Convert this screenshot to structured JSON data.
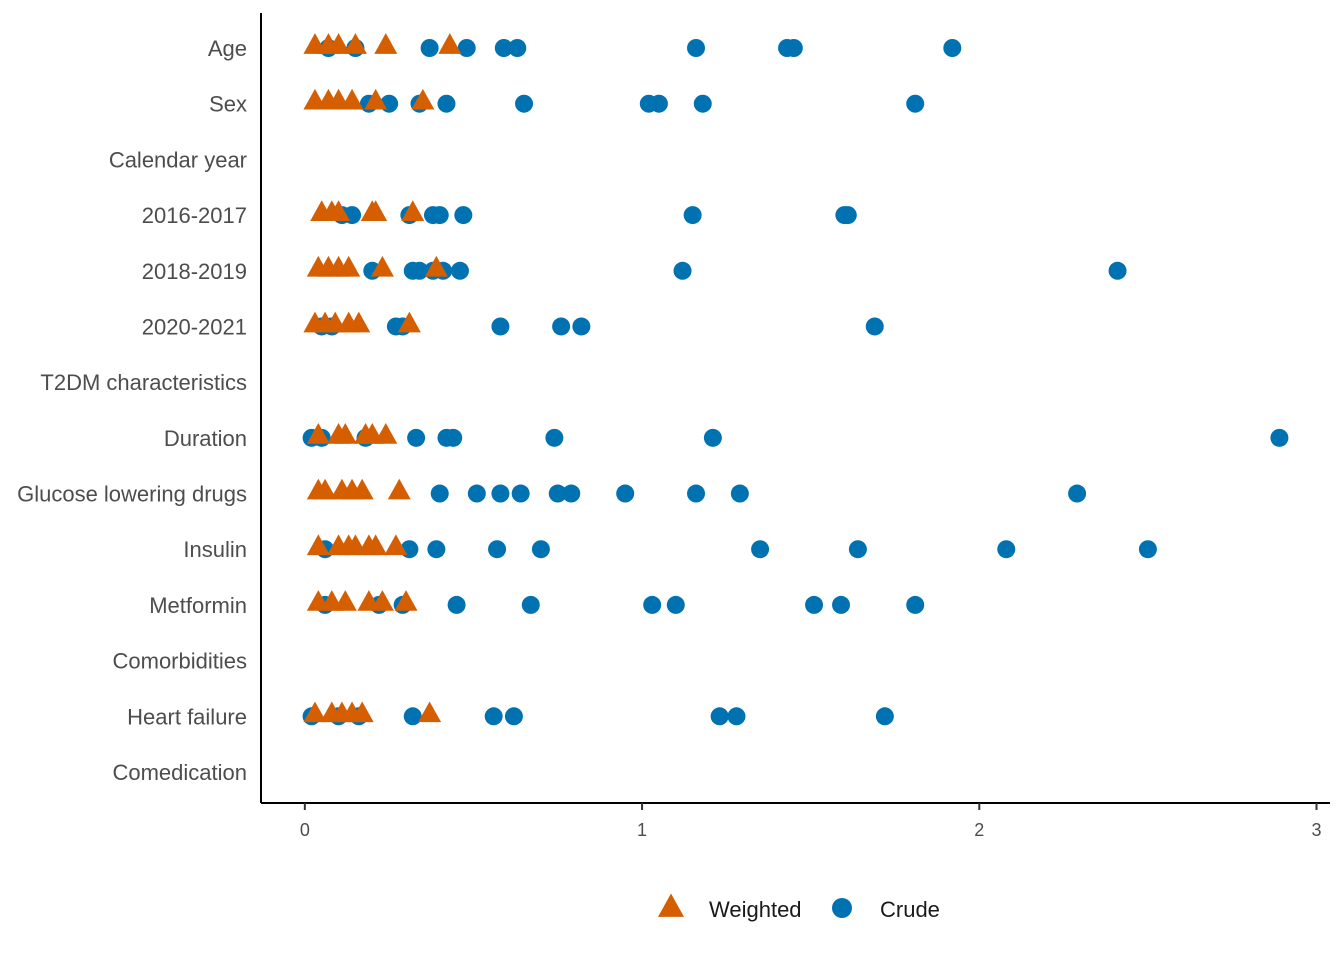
{
  "chart_data": {
    "type": "scatter",
    "orientation": "horizontal",
    "categories": [
      "Age",
      "Sex",
      "Calendar year",
      "2016-2017",
      "2018-2019",
      "2020-2021",
      "T2DM characteristics",
      "Duration",
      "Glucose lowering drugs",
      "Insulin",
      "Metformin",
      "Comorbidities",
      "Heart failure",
      "Comedication"
    ],
    "x_ticks": [
      "0",
      "1",
      "2",
      "3"
    ],
    "xlim": [
      -0.13,
      3.04
    ],
    "xlabel": "",
    "ylabel": "",
    "grid": false,
    "legend_position": "bottom",
    "series": [
      {
        "name": "Crude",
        "marker": "circle",
        "color": "#0072B2",
        "points": [
          {
            "category": "Age",
            "values": [
              0.07,
              0.15,
              0.37,
              0.48,
              0.59,
              0.63,
              1.16,
              1.43,
              1.45,
              1.92
            ]
          },
          {
            "category": "Sex",
            "values": [
              0.19,
              0.25,
              0.34,
              0.42,
              0.65,
              1.02,
              1.05,
              1.18,
              1.81
            ]
          },
          {
            "category": "2016-2017",
            "values": [
              0.11,
              0.14,
              0.31,
              0.38,
              0.4,
              0.47,
              1.15,
              1.6,
              1.61
            ]
          },
          {
            "category": "2018-2019",
            "values": [
              0.2,
              0.32,
              0.34,
              0.38,
              0.41,
              0.46,
              1.12,
              2.41
            ]
          },
          {
            "category": "2020-2021",
            "values": [
              0.05,
              0.08,
              0.27,
              0.29,
              0.58,
              0.76,
              0.82,
              1.69
            ]
          },
          {
            "category": "Duration",
            "values": [
              0.02,
              0.05,
              0.18,
              0.33,
              0.42,
              0.44,
              0.74,
              1.21,
              2.89
            ]
          },
          {
            "category": "Glucose lowering drugs",
            "values": [
              0.4,
              0.51,
              0.58,
              0.64,
              0.75,
              0.79,
              0.95,
              1.16,
              1.29,
              2.29
            ]
          },
          {
            "category": "Insulin",
            "values": [
              0.06,
              0.31,
              0.39,
              0.57,
              0.7,
              1.35,
              1.64,
              2.08,
              2.5
            ]
          },
          {
            "category": "Metformin",
            "values": [
              0.06,
              0.22,
              0.29,
              0.45,
              0.67,
              1.03,
              1.1,
              1.51,
              1.59,
              1.81
            ]
          },
          {
            "category": "Heart failure",
            "values": [
              0.02,
              0.1,
              0.16,
              0.32,
              0.56,
              0.62,
              1.23,
              1.28,
              1.72
            ]
          }
        ]
      },
      {
        "name": "Weighted",
        "marker": "triangle",
        "color": "#D55E00",
        "points": [
          {
            "category": "Age",
            "values": [
              0.03,
              0.07,
              0.1,
              0.15,
              0.24,
              0.43
            ]
          },
          {
            "category": "Sex",
            "values": [
              0.03,
              0.07,
              0.1,
              0.14,
              0.21,
              0.35
            ]
          },
          {
            "category": "2016-2017",
            "values": [
              0.05,
              0.08,
              0.1,
              0.2,
              0.21,
              0.32
            ]
          },
          {
            "category": "2018-2019",
            "values": [
              0.04,
              0.07,
              0.1,
              0.13,
              0.23,
              0.39
            ]
          },
          {
            "category": "2020-2021",
            "values": [
              0.03,
              0.06,
              0.09,
              0.13,
              0.16,
              0.31
            ]
          },
          {
            "category": "Duration",
            "values": [
              0.04,
              0.1,
              0.12,
              0.18,
              0.2,
              0.24
            ]
          },
          {
            "category": "Glucose lowering drugs",
            "values": [
              0.04,
              0.06,
              0.11,
              0.14,
              0.17,
              0.28
            ]
          },
          {
            "category": "Insulin",
            "values": [
              0.04,
              0.1,
              0.13,
              0.15,
              0.19,
              0.21,
              0.27
            ]
          },
          {
            "category": "Metformin",
            "values": [
              0.04,
              0.08,
              0.12,
              0.19,
              0.23,
              0.3
            ]
          },
          {
            "category": "Heart failure",
            "values": [
              0.03,
              0.08,
              0.11,
              0.14,
              0.17,
              0.37
            ]
          }
        ]
      }
    ],
    "legend": [
      "Weighted",
      "Crude"
    ]
  }
}
